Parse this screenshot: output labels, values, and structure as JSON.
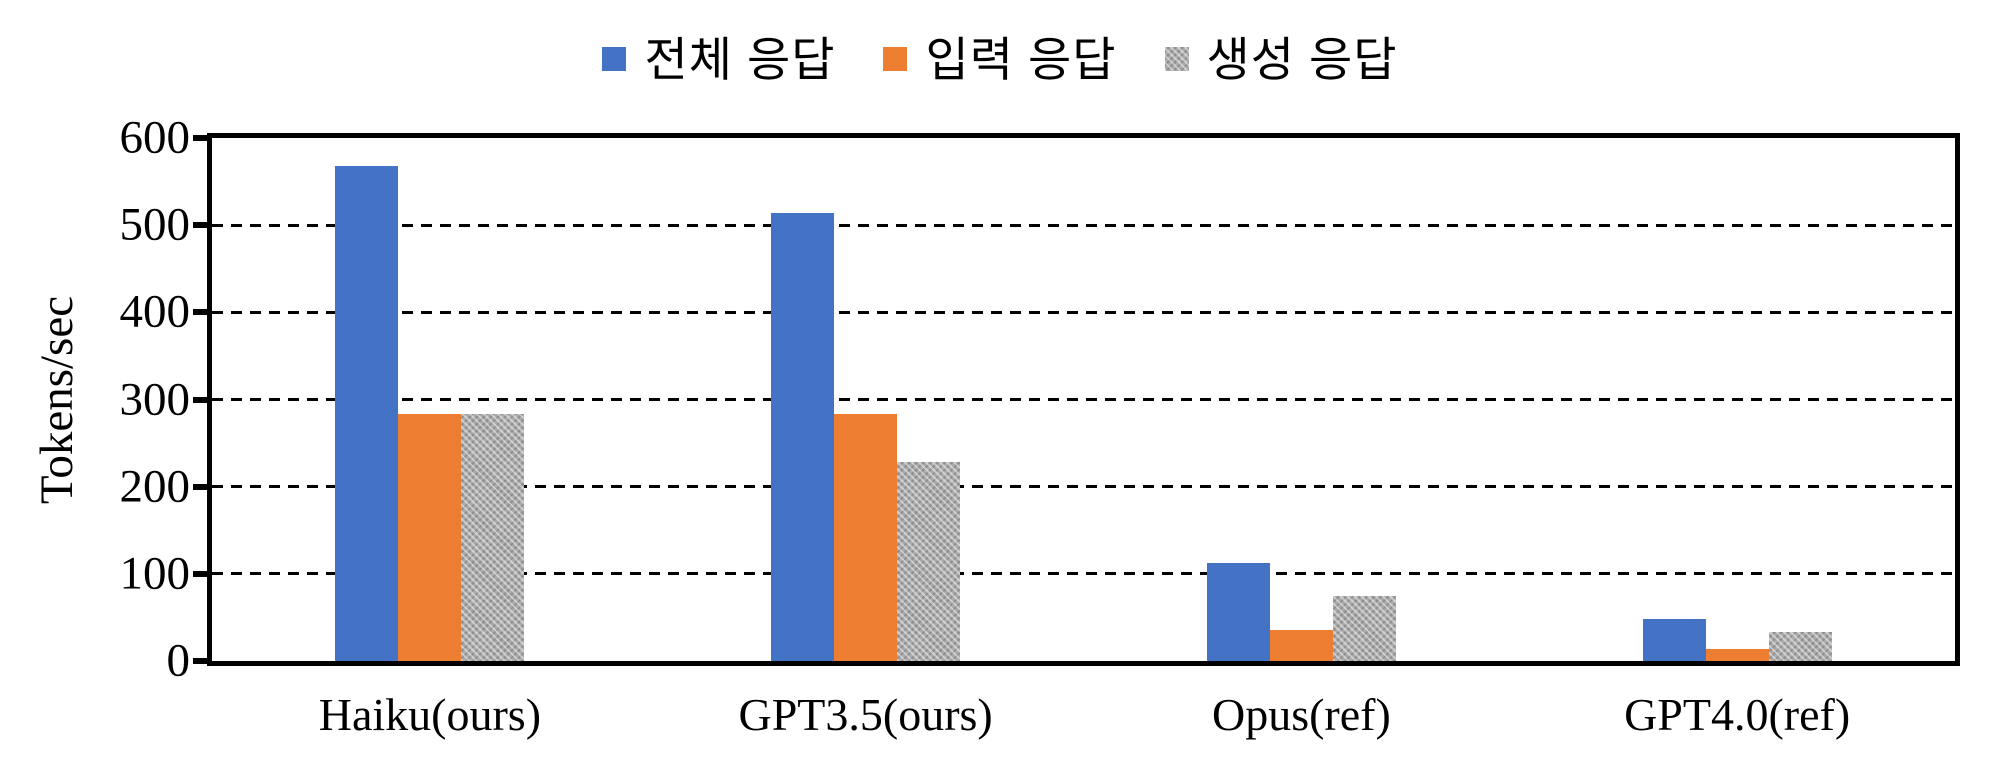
{
  "chart_data": {
    "type": "bar",
    "title": "",
    "ylabel": "Tokens/sec",
    "xlabel": "",
    "ylim": [
      0,
      600
    ],
    "yticks": [
      0,
      100,
      200,
      300,
      400,
      500,
      600
    ],
    "grid": "horizontal-dashed",
    "legend_position": "top-center",
    "frame_color": "#000000",
    "background_color": "#ffffff",
    "categories": [
      "Haiku(ours)",
      "GPT3.5(ours)",
      "Opus(ref)",
      "GPT4.0(ref)"
    ],
    "series": [
      {
        "name": "전체 응답",
        "color": "#4472C4",
        "texture": "solid",
        "values": [
          568,
          514,
          112,
          48
        ]
      },
      {
        "name": "입력 응답",
        "color": "#ED7D31",
        "texture": "solid",
        "values": [
          283,
          283,
          36,
          14
        ]
      },
      {
        "name": "생성 응답",
        "color": "#ABABAB",
        "texture": "dither",
        "values": [
          283,
          228,
          75,
          33
        ]
      }
    ]
  }
}
